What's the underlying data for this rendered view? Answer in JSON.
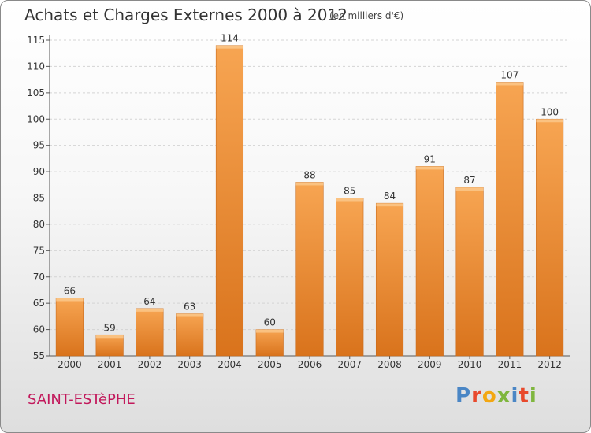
{
  "header": {
    "title": "Achats et Charges Externes 2000 à 2012",
    "subtitle": "(en milliers d'€)"
  },
  "footer": {
    "commune": "SAINT-ESTèPHE",
    "logo_text": "Proxiti",
    "logo_colors": [
      "#4a86c5",
      "#e8492c",
      "#f3a712",
      "#7fb63e",
      "#4a86c5",
      "#e8492c",
      "#7fb63e"
    ]
  },
  "colors": {
    "bar_light": "#f7a552",
    "bar_dark": "#d9731c",
    "grid": "#d4d4d4",
    "axis": "#555555"
  },
  "chart_data": {
    "type": "bar",
    "categories": [
      "2000",
      "2001",
      "2002",
      "2003",
      "2004",
      "2005",
      "2006",
      "2007",
      "2008",
      "2009",
      "2010",
      "2011",
      "2012"
    ],
    "values": [
      66,
      59,
      64,
      63,
      114,
      60,
      88,
      85,
      84,
      91,
      87,
      107,
      100
    ],
    "ylim": [
      55,
      115
    ],
    "yticks": [
      55,
      60,
      65,
      70,
      75,
      80,
      85,
      90,
      95,
      100,
      105,
      110,
      115
    ],
    "title": "Achats et Charges Externes 2000 à 2012",
    "xlabel": "",
    "ylabel": "",
    "grid": true,
    "data_labels": true
  }
}
